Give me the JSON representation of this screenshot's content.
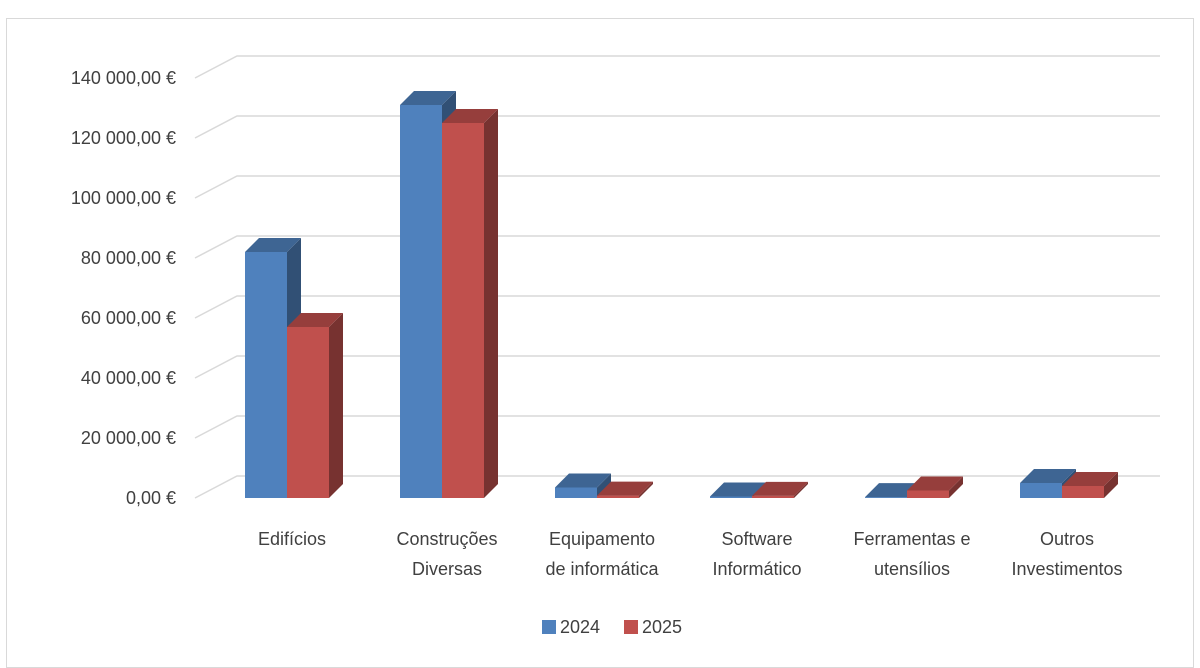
{
  "chart_data": {
    "type": "bar",
    "style": "3d-clustered-column",
    "categories": [
      [
        "Edifícios"
      ],
      [
        "Construções",
        "Diversas"
      ],
      [
        "Equipamento",
        "de informática"
      ],
      [
        "Software",
        "Informático"
      ],
      [
        "Ferramentas e",
        "utensílios"
      ],
      [
        "Outros",
        "Investimentos"
      ]
    ],
    "series": [
      {
        "name": "2024",
        "color": "#4f81bd",
        "values": [
          82000,
          131000,
          3500,
          500,
          300,
          5000
        ]
      },
      {
        "name": "2025",
        "color": "#c0504d",
        "values": [
          57000,
          125000,
          800,
          700,
          2500,
          4000
        ]
      }
    ],
    "yticks": [
      "0,00 €",
      "20 000,00 €",
      "40 000,00 €",
      "60 000,00 €",
      "80 000,00 €",
      "100 000,00 €",
      "120 000,00 €",
      "140 000,00 €"
    ],
    "ylim": [
      0,
      140000
    ],
    "grid": true,
    "legend_position": "bottom"
  }
}
